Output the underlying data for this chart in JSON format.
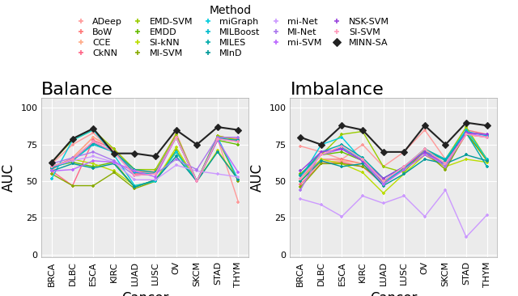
{
  "categories": [
    "BRCA",
    "DLBC",
    "ESCA",
    "KIRC",
    "LUAD",
    "LUSC",
    "OV",
    "SKCM",
    "STAD",
    "THYM"
  ],
  "methods": [
    "ADeep",
    "BoW",
    "CCE",
    "CkNN",
    "EMD-SVM",
    "EMDD",
    "SI-kNN",
    "MI-SVM",
    "miGraph",
    "MILBoost",
    "MILES",
    "MInD",
    "mi-Net",
    "MI-Net",
    "mi-SVM",
    "NSK-SVM",
    "SI-SVM",
    "MINN-SA"
  ],
  "color_map": {
    "ADeep": "#FF9999",
    "BoW": "#FF7777",
    "CCE": "#FFAA88",
    "CkNN": "#FF6688",
    "EMD-SVM": "#99CC00",
    "EMDD": "#66BB00",
    "SI-kNN": "#BBDD00",
    "MI-SVM": "#88AA00",
    "miGraph": "#00CCDD",
    "MILBoost": "#00BBCC",
    "MILES": "#00AAAA",
    "MInD": "#009999",
    "mi-Net": "#CC99FF",
    "MI-Net": "#AA77EE",
    "mi-SVM": "#BB66FF",
    "NSK-SVM": "#9944DD",
    "SI-SVM": "#FF99BB",
    "MINN-SA": "#222222"
  },
  "balance": {
    "ADeep": [
      62,
      75,
      83,
      70,
      55,
      56,
      83,
      50,
      79,
      36
    ],
    "BoW": [
      58,
      66,
      80,
      72,
      56,
      57,
      80,
      50,
      80,
      79
    ],
    "CCE": [
      59,
      66,
      80,
      72,
      57,
      57,
      81,
      50,
      81,
      78
    ],
    "CkNN": [
      57,
      47,
      78,
      72,
      55,
      55,
      80,
      50,
      81,
      78
    ],
    "EMD-SVM": [
      63,
      78,
      85,
      72,
      58,
      58,
      82,
      50,
      81,
      78
    ],
    "EMDD": [
      60,
      63,
      60,
      63,
      46,
      51,
      71,
      50,
      78,
      75
    ],
    "SI-kNN": [
      60,
      65,
      62,
      57,
      47,
      50,
      73,
      50,
      71,
      51
    ],
    "MI-SVM": [
      55,
      47,
      47,
      56,
      45,
      50,
      70,
      50,
      79,
      50
    ],
    "miGraph": [
      52,
      78,
      85,
      68,
      47,
      50,
      70,
      50,
      80,
      51
    ],
    "MILBoost": [
      59,
      64,
      75,
      70,
      56,
      55,
      80,
      50,
      80,
      77
    ],
    "MILES": [
      59,
      65,
      76,
      70,
      58,
      56,
      80,
      50,
      79,
      78
    ],
    "MInD": [
      57,
      62,
      59,
      62,
      46,
      51,
      67,
      50,
      70,
      51
    ],
    "mi-Net": [
      60,
      64,
      67,
      63,
      51,
      51,
      61,
      57,
      55,
      53
    ],
    "MI-Net": [
      62,
      66,
      70,
      64,
      54,
      55,
      65,
      58,
      80,
      80
    ],
    "mi-SVM": [
      57,
      58,
      64,
      63,
      57,
      53,
      80,
      50,
      78,
      56
    ],
    "NSK-SVM": [
      60,
      65,
      77,
      70,
      54,
      55,
      80,
      50,
      79,
      77
    ],
    "SI-SVM": [
      60,
      65,
      77,
      70,
      54,
      55,
      80,
      50,
      79,
      77
    ],
    "MINN-SA": [
      63,
      79,
      86,
      69,
      69,
      67,
      85,
      75,
      87,
      85
    ]
  },
  "imbalance": {
    "ADeep": [
      74,
      70,
      65,
      75,
      60,
      70,
      85,
      65,
      82,
      80
    ],
    "BoW": [
      52,
      65,
      65,
      62,
      49,
      60,
      70,
      65,
      85,
      82
    ],
    "CCE": [
      50,
      63,
      64,
      62,
      50,
      60,
      70,
      60,
      82,
      80
    ],
    "CkNN": [
      48,
      62,
      63,
      60,
      48,
      58,
      68,
      60,
      82,
      80
    ],
    "EMD-SVM": [
      52,
      68,
      82,
      84,
      60,
      56,
      72,
      65,
      87,
      65
    ],
    "EMDD": [
      55,
      68,
      70,
      64,
      48,
      59,
      72,
      62,
      83,
      65
    ],
    "SI-kNN": [
      50,
      65,
      62,
      56,
      42,
      55,
      68,
      60,
      65,
      63
    ],
    "MI-SVM": [
      46,
      62,
      62,
      60,
      50,
      58,
      70,
      58,
      83,
      64
    ],
    "miGraph": [
      52,
      75,
      80,
      64,
      48,
      60,
      70,
      65,
      85,
      65
    ],
    "MILBoost": [
      54,
      68,
      73,
      65,
      50,
      58,
      72,
      65,
      84,
      81
    ],
    "MILES": [
      54,
      70,
      75,
      66,
      52,
      60,
      72,
      64,
      83,
      60
    ],
    "MInD": [
      50,
      64,
      60,
      62,
      47,
      55,
      65,
      62,
      68,
      64
    ],
    "mi-Net": [
      38,
      34,
      26,
      40,
      35,
      40,
      26,
      44,
      12,
      27
    ],
    "MI-Net": [
      44,
      70,
      72,
      64,
      50,
      60,
      70,
      60,
      83,
      82
    ],
    "mi-SVM": [
      52,
      68,
      72,
      64,
      48,
      58,
      68,
      62,
      83,
      80
    ],
    "NSK-SVM": [
      57,
      70,
      72,
      64,
      52,
      60,
      70,
      62,
      83,
      82
    ],
    "SI-SVM": [
      52,
      68,
      74,
      65,
      50,
      60,
      72,
      62,
      82,
      80
    ],
    "MINN-SA": [
      80,
      75,
      88,
      85,
      70,
      70,
      88,
      75,
      90,
      88
    ]
  },
  "background_color": "#EBEBEB",
  "grid_color": "#FFFFFF",
  "title_fontsize": 16,
  "axis_label_fontsize": 12,
  "tick_fontsize": 8,
  "legend_fontsize": 8,
  "legend_title_fontsize": 10,
  "ylim": [
    -2,
    107
  ],
  "yticks": [
    0,
    25,
    50,
    75,
    100
  ]
}
